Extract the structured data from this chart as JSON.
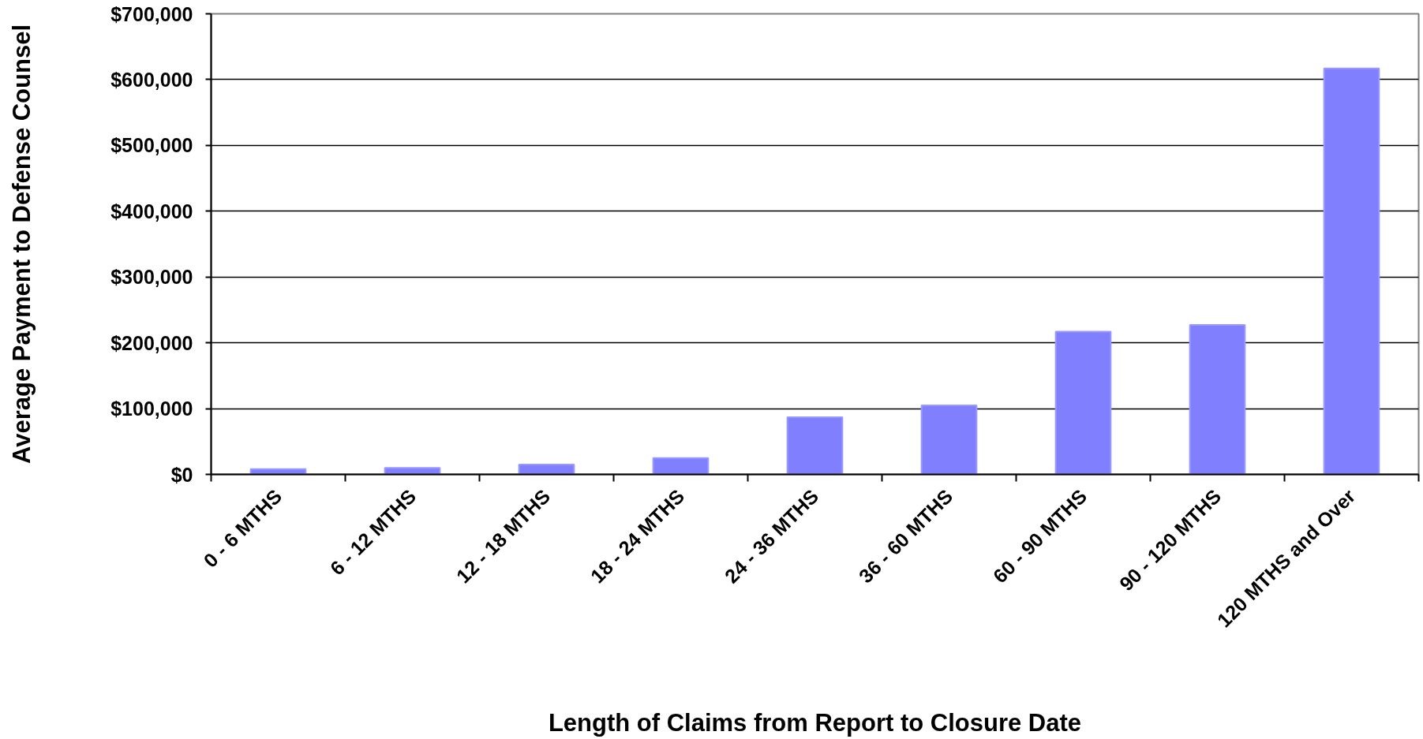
{
  "chart_data": {
    "type": "bar",
    "xlabel": "Length of Claims from Report to Closure Date",
    "ylabel": "Average Payment to Defense Counsel",
    "categories": [
      "0 - 6 MTHS",
      "6 - 12 MTHS",
      "12 - 18 MTHS",
      "18 - 24 MTHS",
      "24 - 36 MTHS",
      "36 - 60 MTHS",
      "60 - 90 MTHS",
      "90 - 120 MTHS",
      "120 MTHS and Over"
    ],
    "series": [
      {
        "color": "#8080ff",
        "values": [
          8000,
          10000,
          15000,
          25000,
          87000,
          105000,
          217000,
          227000,
          617000
        ]
      }
    ],
    "ylim": [
      0,
      700000
    ],
    "yticks": [
      {
        "value": 0,
        "label": "$0"
      },
      {
        "value": 100000,
        "label": "$100,000"
      },
      {
        "value": 200000,
        "label": "$200,000"
      },
      {
        "value": 300000,
        "label": "$300,000"
      },
      {
        "value": 400000,
        "label": "$400,000"
      },
      {
        "value": 500000,
        "label": "$500,000"
      },
      {
        "value": 600000,
        "label": "$600,000"
      },
      {
        "value": 700000,
        "label": "$700,000"
      }
    ],
    "grid": "y"
  }
}
